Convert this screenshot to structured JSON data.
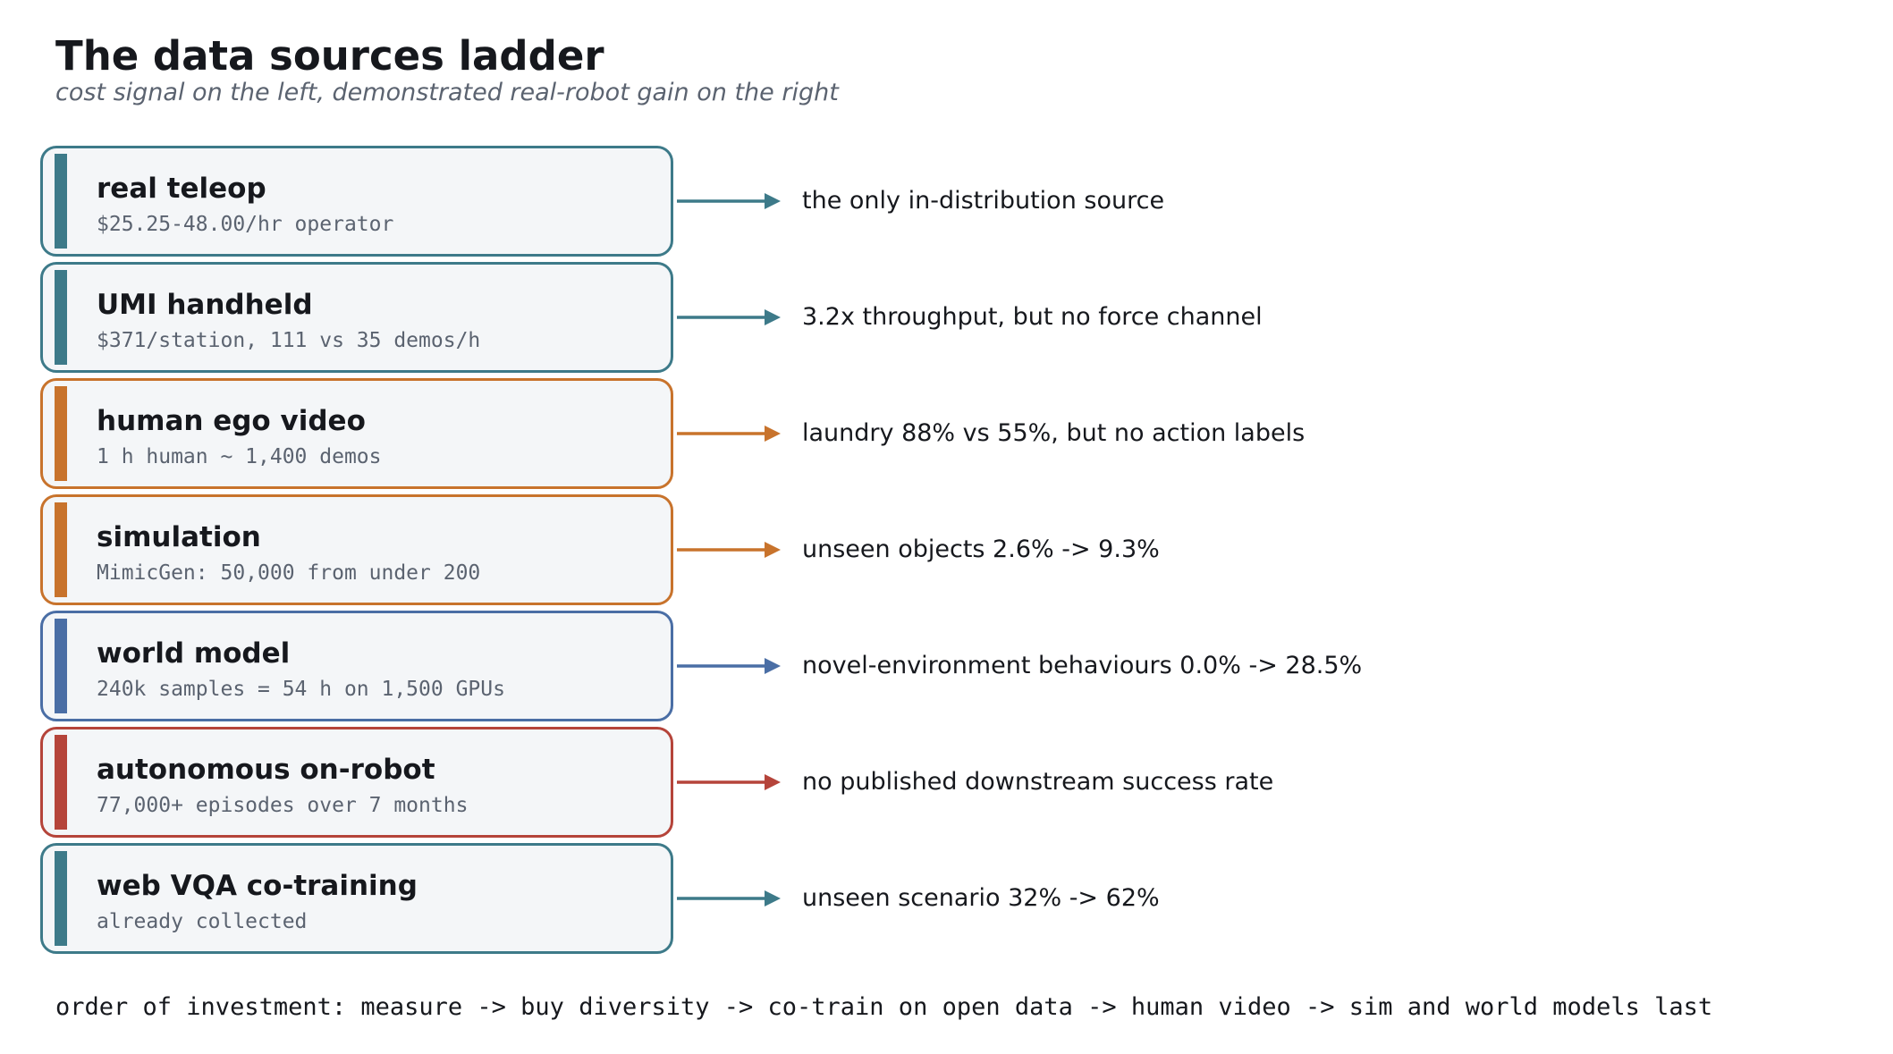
{
  "title": "The data sources ladder",
  "subtitle": "cost signal on the left, demonstrated real-robot gain on the right",
  "rungs": [
    {
      "name": "real teleop",
      "detail": "$25.25-48.00/hr operator",
      "outcome": "the only in-distribution source",
      "color": "#3d7a89"
    },
    {
      "name": "UMI handheld",
      "detail": "$371/station, 111 vs 35 demos/h",
      "outcome": "3.2x throughput, but no force channel",
      "color": "#3d7a89"
    },
    {
      "name": "human ego video",
      "detail": "1 h human ~ 1,400 demos",
      "outcome": "laundry 88% vs 55%, but no action labels",
      "color": "#c8732c"
    },
    {
      "name": "simulation",
      "detail": "MimicGen: 50,000 from under 200",
      "outcome": "unseen objects 2.6% -> 9.3%",
      "color": "#c8732c"
    },
    {
      "name": "world model",
      "detail": "240k samples = 54 h on 1,500 GPUs",
      "outcome": "novel-environment behaviours 0.0% -> 28.5%",
      "color": "#4a6ea5"
    },
    {
      "name": "autonomous on-robot",
      "detail": "77,000+ episodes over 7 months",
      "outcome": "no published downstream success rate",
      "color": "#b5443a"
    },
    {
      "name": "web VQA co-training",
      "detail": "already collected",
      "outcome": "unseen scenario 32% -> 62%",
      "color": "#3d7a89"
    }
  ],
  "footer": "order of investment: measure -> buy diversity -> co-train on open data -> human video -> sim and world models last"
}
